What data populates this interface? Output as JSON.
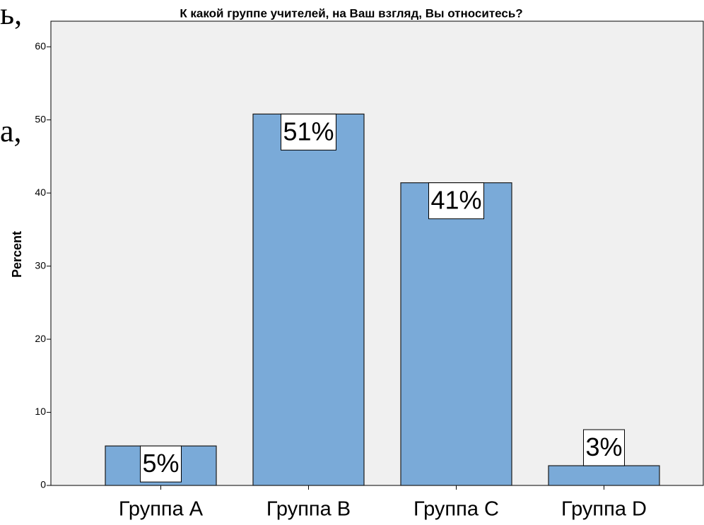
{
  "fragments": [
    "ь,",
    "а,"
  ],
  "chart_data": {
    "type": "bar",
    "title": "К какой группе учителей, на Ваш взгляд, Вы относитесь?",
    "y_label": "Percent",
    "categories": [
      "Группа A",
      "Группа B",
      "Группа C",
      "Группа D"
    ],
    "values": [
      5.4,
      50.8,
      41.4,
      2.7
    ],
    "value_labels": [
      "5%",
      "51%",
      "41%",
      "3%"
    ],
    "color": "#7aaad8",
    "ylim": [
      0,
      63.5
    ],
    "yticks": [
      0,
      10,
      20,
      30,
      40,
      50,
      60
    ],
    "grid": false
  }
}
